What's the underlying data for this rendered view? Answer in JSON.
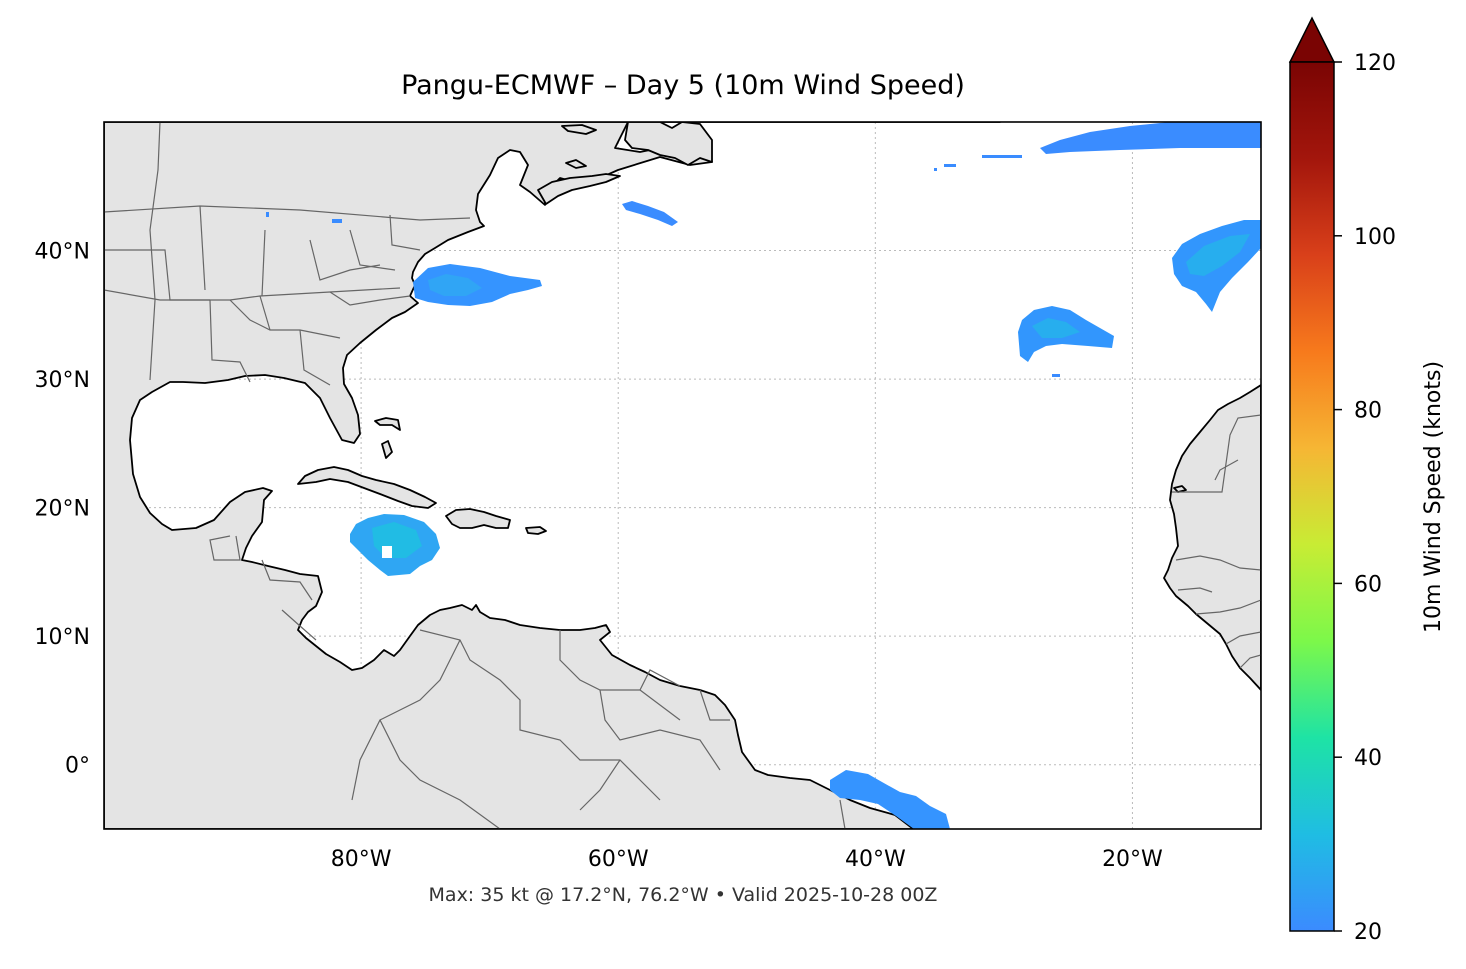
{
  "title": "Pangu-ECMWF – Day 5 (10m Wind Speed)",
  "footer": "Max: 35 kt @ 17.2°N, 76.2°W • Valid 2025-10-28 00Z",
  "map": {
    "extent": {
      "lon_min": -100,
      "lon_max": -10,
      "lat_min": -5,
      "lat_max": 50
    },
    "land_color": "#e4e4e4",
    "ocean_color": "#ffffff",
    "coast_color": "#000000",
    "border_color": "#666666",
    "gridlines": true,
    "lat_ticks": [
      {
        "value": 40,
        "label": "40°N"
      },
      {
        "value": 30,
        "label": "30°N"
      },
      {
        "value": 20,
        "label": "20°N"
      },
      {
        "value": 10,
        "label": "10°N"
      },
      {
        "value": 0,
        "label": "0°"
      }
    ],
    "lon_ticks": [
      {
        "value": -80,
        "label": "80°W"
      },
      {
        "value": -60,
        "label": "60°W"
      },
      {
        "value": -40,
        "label": "40°W"
      },
      {
        "value": -20,
        "label": "20°W"
      }
    ],
    "max_wind": {
      "value_kt": 35,
      "lat": 17.2,
      "lon": -76.2
    }
  },
  "colorbar": {
    "label": "10m Wind Speed (knots)",
    "min": 20,
    "max": 120,
    "extend": "max",
    "ticks": [
      {
        "value": 20,
        "label": "20"
      },
      {
        "value": 40,
        "label": "40"
      },
      {
        "value": 60,
        "label": "60"
      },
      {
        "value": 80,
        "label": "80"
      },
      {
        "value": 100,
        "label": "100"
      },
      {
        "value": 120,
        "label": "120"
      }
    ],
    "colors": [
      "#3b8bff",
      "#1fbde3",
      "#1ee3a5",
      "#7cf84a",
      "#c8ec34",
      "#f6b634",
      "#f77a1c",
      "#d9401a",
      "#a3160c",
      "#7a0403"
    ]
  },
  "chart_data": {
    "type": "heatmap",
    "title": "Pangu-ECMWF – Day 5 (10m Wind Speed)",
    "variable": "10m Wind Speed (knots)",
    "threshold_kt": 20,
    "max": {
      "value_kt": 35,
      "lat": 17.2,
      "lon": -76.2,
      "valid": "2025-10-28 00Z"
    },
    "wind_areas_kt": [
      {
        "region": "around Jamaica",
        "peak_kt": 35
      },
      {
        "region": "off US mid-Atlantic coast",
        "peak_kt": 27
      },
      {
        "region": "south of Nova Scotia",
        "peak_kt": 22
      },
      {
        "region": "central North Atlantic",
        "peak_kt": 26
      },
      {
        "region": "off Iberia",
        "peak_kt": 26
      },
      {
        "region": "northern North Atlantic",
        "peak_kt": 22
      },
      {
        "region": "off north-east Brazil",
        "peak_kt": 22
      }
    ]
  }
}
